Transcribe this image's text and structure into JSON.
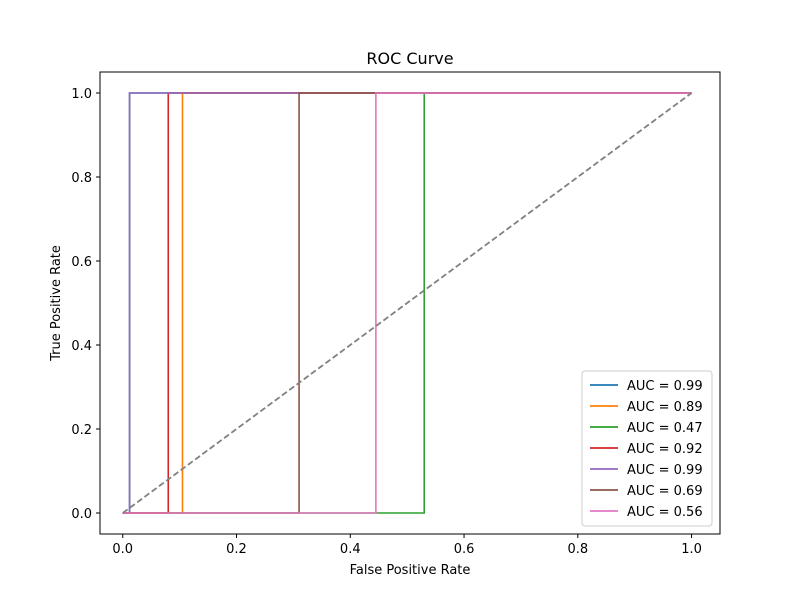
{
  "chart_data": {
    "type": "line",
    "title": "ROC Curve",
    "xlabel": "False Positive Rate",
    "ylabel": "True Positive Rate",
    "xlim": [
      -0.04,
      1.05
    ],
    "ylim": [
      -0.05,
      1.05
    ],
    "xticks": [
      0.0,
      0.2,
      0.4,
      0.6,
      0.8,
      1.0
    ],
    "yticks": [
      0.0,
      0.2,
      0.4,
      0.6,
      0.8,
      1.0
    ],
    "tick_labels": [
      "0.0",
      "0.2",
      "0.4",
      "0.6",
      "0.8",
      "1.0"
    ],
    "grid": false,
    "legend_position": "lower-right",
    "series": [
      {
        "name": "AUC = 0.99",
        "color": "#1f77b4",
        "x": [
          0,
          0.012,
          0.012,
          1.0
        ],
        "y": [
          0,
          0,
          1,
          1
        ]
      },
      {
        "name": "AUC = 0.89",
        "color": "#ff7f0e",
        "x": [
          0,
          0.105,
          0.105,
          1.0
        ],
        "y": [
          0,
          0,
          1,
          1
        ]
      },
      {
        "name": "AUC = 0.47",
        "color": "#2ca02c",
        "x": [
          0,
          0.53,
          0.53,
          1.0
        ],
        "y": [
          0,
          0,
          1,
          1
        ]
      },
      {
        "name": "AUC = 0.92",
        "color": "#d62728",
        "x": [
          0,
          0.08,
          0.08,
          1.0
        ],
        "y": [
          0,
          0,
          1,
          1
        ]
      },
      {
        "name": "AUC = 0.99",
        "color": "#9467bd",
        "x": [
          0,
          0.012,
          0.012,
          1.0
        ],
        "y": [
          0,
          0,
          1,
          1
        ]
      },
      {
        "name": "AUC = 0.69",
        "color": "#8c564b",
        "x": [
          0,
          0.31,
          0.31,
          1.0
        ],
        "y": [
          0,
          0,
          1,
          1
        ]
      },
      {
        "name": "AUC = 0.56",
        "color": "#e377c2",
        "x": [
          0,
          0.445,
          0.445,
          1.0
        ],
        "y": [
          0,
          0,
          1,
          1
        ]
      }
    ],
    "reference_line": {
      "color": "#808080",
      "x": [
        0,
        1
      ],
      "y": [
        0,
        1
      ],
      "style": "dashed"
    }
  }
}
